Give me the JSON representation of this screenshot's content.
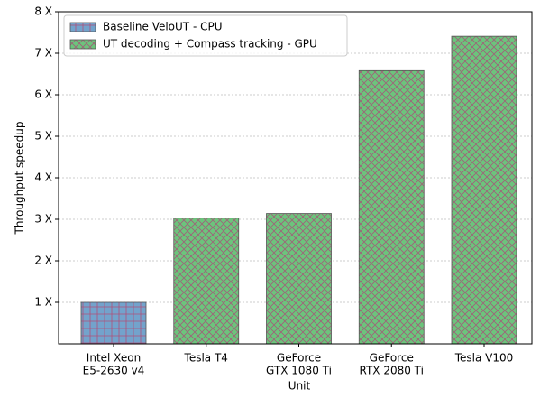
{
  "chart_data": {
    "type": "bar",
    "categories": [
      [
        "Intel Xeon",
        "E5-2630 v4"
      ],
      [
        "Tesla T4"
      ],
      [
        "GeForce",
        "GTX 1080 Ti"
      ],
      [
        "GeForce",
        "RTX 2080 Ti"
      ],
      [
        "Tesla V100"
      ]
    ],
    "series": [
      {
        "name": "Baseline VeloUT - CPU",
        "color": "#73a3cc",
        "values": [
          1,
          null,
          null,
          null,
          null
        ]
      },
      {
        "name": "UT decoding + Compass tracking - GPU",
        "color": "#6cc47c",
        "values": [
          null,
          3.03,
          3.14,
          6.58,
          7.41
        ]
      }
    ],
    "xlabel": "Unit",
    "ylabel": "Throughput speedup",
    "ylim": [
      0,
      8
    ],
    "yticks": [
      {
        "value": 1,
        "label": "1 X"
      },
      {
        "value": 2,
        "label": "2 X"
      },
      {
        "value": 3,
        "label": "3 X"
      },
      {
        "value": 4,
        "label": "4 X"
      },
      {
        "value": 5,
        "label": "5 X"
      },
      {
        "value": 6,
        "label": "6 X"
      },
      {
        "value": 7,
        "label": "7 X"
      },
      {
        "value": 8,
        "label": "8 X"
      }
    ],
    "grid": true,
    "legend": "upper left"
  }
}
